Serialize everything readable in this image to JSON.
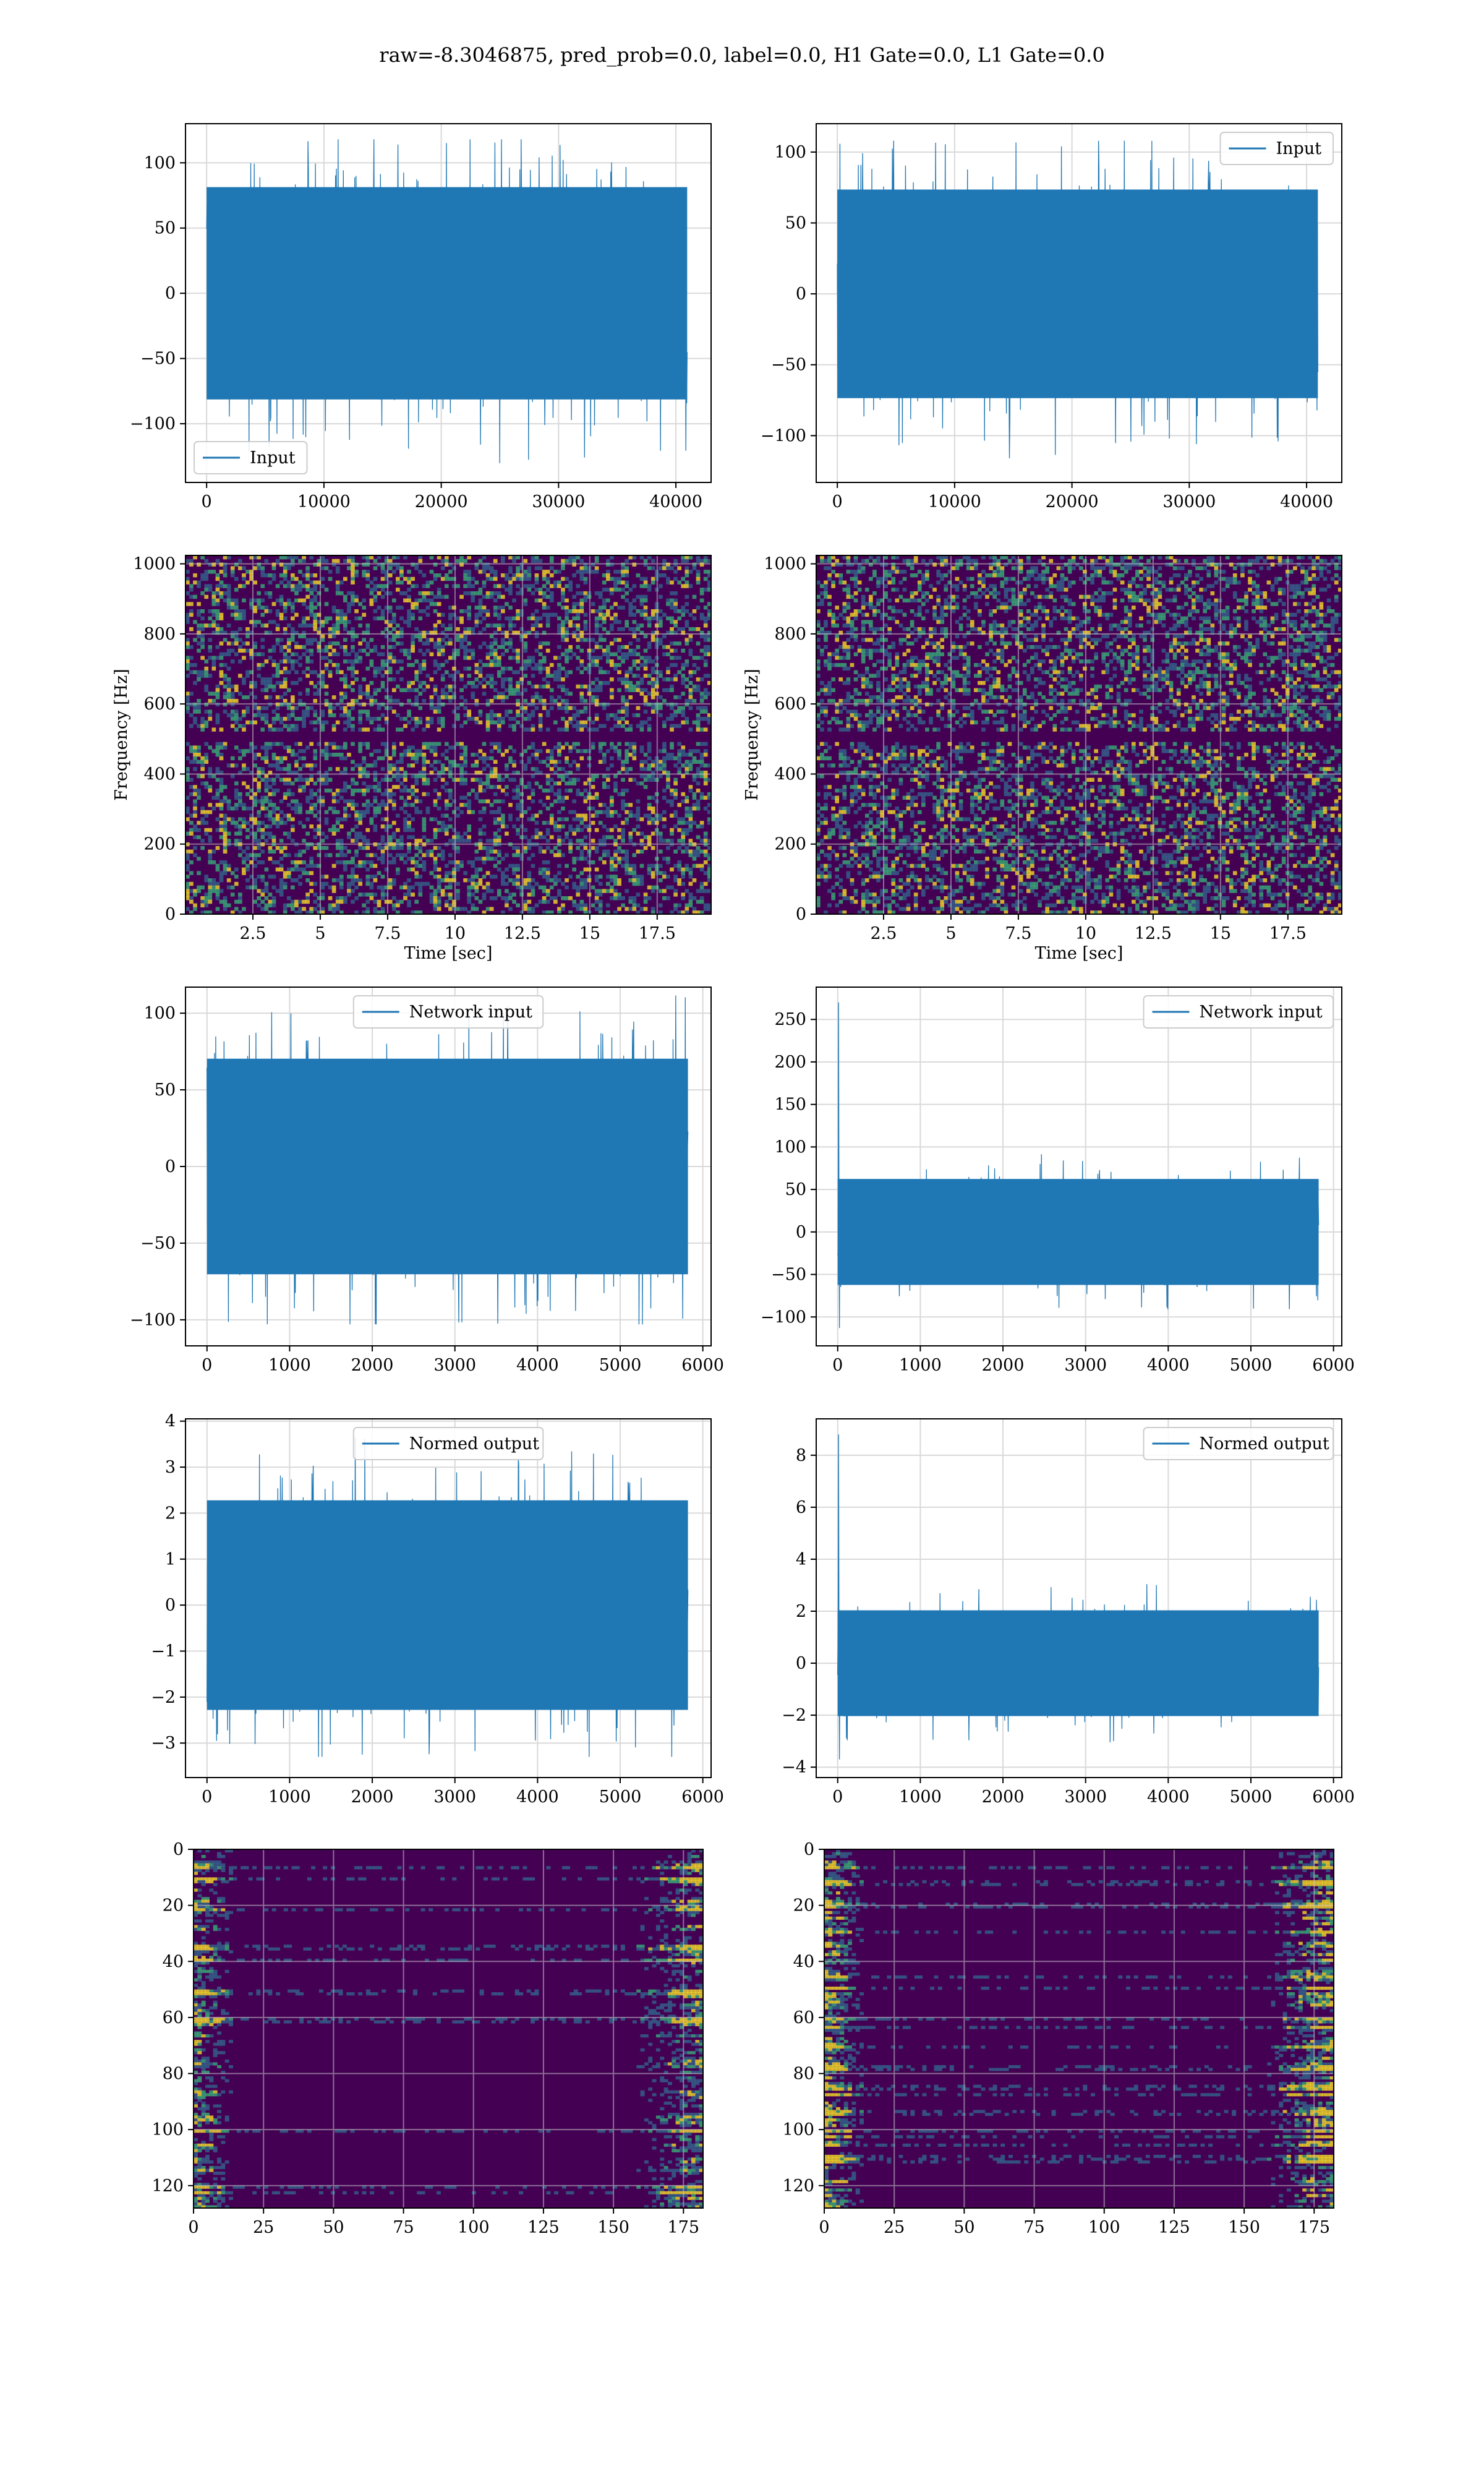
{
  "figure": {
    "title": "raw=-8.3046875, pred_prob=0.0, label=0.0, H1 Gate=0.0, L1 Gate=0.0"
  },
  "colors": {
    "series": "#1f77b4",
    "spec_bg": "#440154",
    "spec_mid": "#31688e",
    "spec_hi": "#35b779",
    "spec_peak": "#fde725",
    "grid_light": "#d9d9d9",
    "grid_dark": "#c8c8c8"
  },
  "chart_data": [
    {
      "id": "h1-input",
      "type": "line",
      "title": "",
      "series": [
        {
          "name": "Input",
          "n_samples": 40960,
          "envelope_min": -132,
          "envelope_max": 118
        }
      ],
      "xlim": [
        -1800,
        43000
      ],
      "ylim": [
        -145,
        130
      ],
      "xticks": [
        0,
        10000,
        20000,
        30000,
        40000
      ],
      "yticks": [
        -100,
        -50,
        0,
        50,
        100
      ],
      "xlabel": "",
      "ylabel": "",
      "legend": "lower left",
      "grid": true
    },
    {
      "id": "l1-input",
      "type": "line",
      "title": "",
      "series": [
        {
          "name": "Input",
          "n_samples": 40960,
          "envelope_min": -118,
          "envelope_max": 108
        }
      ],
      "xlim": [
        -1800,
        43000
      ],
      "ylim": [
        -133,
        120
      ],
      "xticks": [
        0,
        10000,
        20000,
        30000,
        40000
      ],
      "yticks": [
        -100,
        -50,
        0,
        50,
        100
      ],
      "xlabel": "",
      "ylabel": "",
      "legend": "upper right",
      "grid": true
    },
    {
      "id": "h1-spectrogram",
      "type": "heatmap",
      "title": "",
      "xlim": [
        0,
        19.5
      ],
      "ylim": [
        0,
        1024
      ],
      "xticks": [
        2.5,
        5.0,
        7.5,
        10.0,
        12.5,
        15.0,
        17.5
      ],
      "yticks": [
        0,
        200,
        400,
        600,
        800,
        1000
      ],
      "xlabel": "Time [sec]",
      "ylabel": "Frequency [Hz]",
      "grid": true,
      "colormap": "viridis"
    },
    {
      "id": "l1-spectrogram",
      "type": "heatmap",
      "title": "",
      "xlim": [
        0,
        19.5
      ],
      "ylim": [
        0,
        1024
      ],
      "xticks": [
        2.5,
        5.0,
        7.5,
        10.0,
        12.5,
        15.0,
        17.5
      ],
      "yticks": [
        0,
        200,
        400,
        600,
        800,
        1000
      ],
      "xlabel": "Time [sec]",
      "ylabel": "Frequency [Hz]",
      "grid": true,
      "colormap": "viridis"
    },
    {
      "id": "h1-network-input",
      "type": "line",
      "title": "",
      "series": [
        {
          "name": "Network input",
          "n_samples": 5820,
          "envelope_min": -103,
          "envelope_max": 113
        }
      ],
      "xlim": [
        -260,
        6100
      ],
      "ylim": [
        -117,
        117
      ],
      "xticks": [
        0,
        1000,
        2000,
        3000,
        4000,
        5000,
        6000
      ],
      "yticks": [
        -100,
        -50,
        0,
        50,
        100
      ],
      "xlabel": "",
      "ylabel": "",
      "legend": "upper center",
      "grid": true
    },
    {
      "id": "l1-network-input",
      "type": "line",
      "title": "",
      "series": [
        {
          "name": "Network input",
          "n_samples": 5820,
          "envelope_min": -113,
          "envelope_max": 270
        }
      ],
      "xlim": [
        -260,
        6100
      ],
      "ylim": [
        -134,
        288
      ],
      "xticks": [
        0,
        1000,
        2000,
        3000,
        4000,
        5000,
        6000
      ],
      "yticks": [
        -100,
        -50,
        0,
        50,
        100,
        150,
        200,
        250
      ],
      "xlabel": "",
      "ylabel": "",
      "legend": "upper right",
      "grid": true
    },
    {
      "id": "h1-normed-output",
      "type": "line",
      "title": "",
      "series": [
        {
          "name": "Normed output",
          "n_samples": 5820,
          "envelope_min": -3.3,
          "envelope_max": 3.7
        }
      ],
      "xlim": [
        -260,
        6100
      ],
      "ylim": [
        -3.75,
        4.05
      ],
      "xticks": [
        0,
        1000,
        2000,
        3000,
        4000,
        5000,
        6000
      ],
      "yticks": [
        -3,
        -2,
        -1,
        0,
        1,
        2,
        3,
        4
      ],
      "xlabel": "",
      "ylabel": "",
      "legend": "upper center",
      "grid": true
    },
    {
      "id": "l1-normed-output",
      "type": "line",
      "title": "",
      "series": [
        {
          "name": "Normed output",
          "n_samples": 5820,
          "envelope_min": -3.7,
          "envelope_max": 8.8
        }
      ],
      "xlim": [
        -260,
        6100
      ],
      "ylim": [
        -4.4,
        9.4
      ],
      "xticks": [
        0,
        1000,
        2000,
        3000,
        4000,
        5000,
        6000
      ],
      "yticks": [
        -4,
        -2,
        0,
        2,
        4,
        6,
        8
      ],
      "xlabel": "",
      "ylabel": "",
      "legend": "upper right",
      "grid": true
    },
    {
      "id": "h1-feature-map",
      "type": "heatmap",
      "title": "",
      "rows": 128,
      "cols": 182,
      "xlim": [
        0,
        182
      ],
      "ylim": [
        128,
        0
      ],
      "xticks": [
        0,
        25,
        50,
        75,
        100,
        125,
        150,
        175
      ],
      "yticks": [
        0,
        20,
        40,
        60,
        80,
        100,
        120
      ],
      "xlabel": "",
      "ylabel": "",
      "grid": true,
      "colormap": "viridis"
    },
    {
      "id": "l1-feature-map",
      "type": "heatmap",
      "title": "",
      "rows": 128,
      "cols": 182,
      "xlim": [
        0,
        182
      ],
      "ylim": [
        128,
        0
      ],
      "xticks": [
        0,
        25,
        50,
        75,
        100,
        125,
        150,
        175
      ],
      "yticks": [
        0,
        20,
        40,
        60,
        80,
        100,
        120
      ],
      "xlabel": "",
      "ylabel": "",
      "grid": true,
      "colormap": "viridis"
    }
  ]
}
